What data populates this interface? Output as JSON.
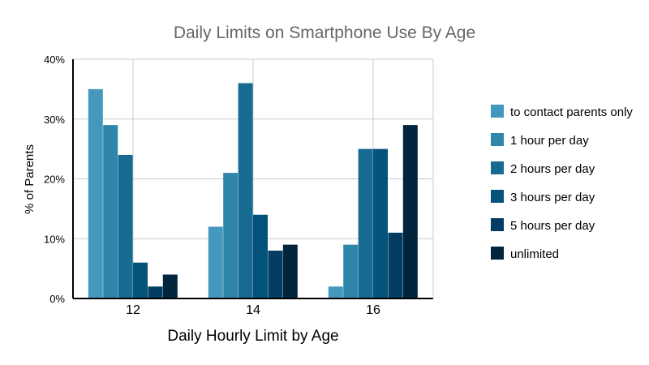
{
  "chart_data": {
    "type": "bar",
    "title": "Daily Limits on Smartphone Use By Age",
    "xlabel": "Daily Hourly Limit by Age",
    "ylabel": "% of Parents",
    "categories": [
      "12",
      "14",
      "16"
    ],
    "ylim": [
      0,
      40
    ],
    "yticks": [
      0,
      10,
      20,
      30,
      40
    ],
    "ytick_labels": [
      "0%",
      "10%",
      "20%",
      "30%",
      "40%"
    ],
    "grid": true,
    "legend_position": "right",
    "series": [
      {
        "name": "to contact parents only",
        "values": [
          35,
          12,
          2
        ],
        "color": "#4498be"
      },
      {
        "name": "1 hour per day",
        "values": [
          29,
          21,
          9
        ],
        "color": "#2e86ab"
      },
      {
        "name": "2 hours per day",
        "values": [
          24,
          36,
          25
        ],
        "color": "#176b92"
      },
      {
        "name": "3 hours per day",
        "values": [
          6,
          14,
          25
        ],
        "color": "#04537a"
      },
      {
        "name": "5 hours per day",
        "values": [
          2,
          8,
          11
        ],
        "color": "#033d63"
      },
      {
        "name": "unlimited",
        "values": [
          4,
          9,
          29
        ],
        "color": "#00253d"
      }
    ]
  }
}
